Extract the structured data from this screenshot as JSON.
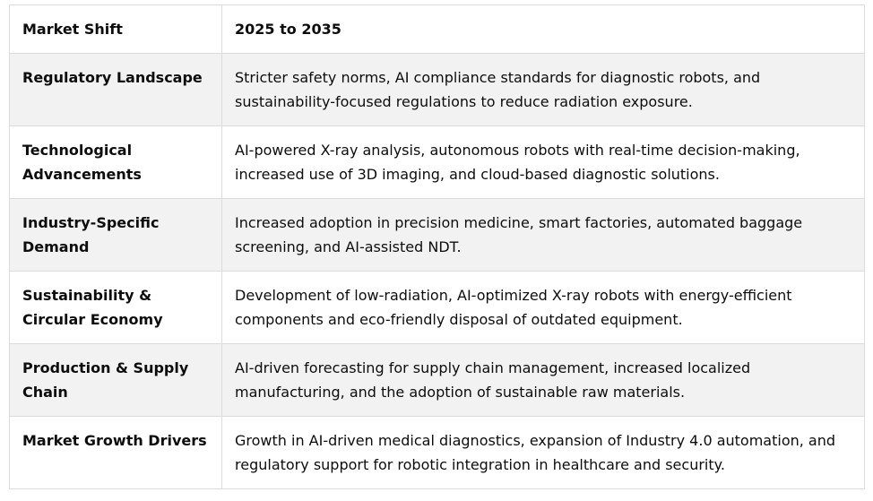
{
  "table": {
    "headers": [
      "Market Shift",
      "2025 to 2035"
    ],
    "rows": [
      {
        "label": "Regulatory Landscape",
        "value": "Stricter safety norms, AI compliance standards for diagnostic robots, and sustainability-focused regulations to reduce radiation exposure."
      },
      {
        "label": "Technological Advancements",
        "value": "AI-powered X-ray analysis, autonomous robots with real-time decision-making, increased use of 3D imaging, and cloud-based diagnostic solutions."
      },
      {
        "label": "Industry-Specific Demand",
        "value": "Increased adoption in precision medicine, smart factories, automated baggage screening, and AI-assisted NDT."
      },
      {
        "label": "Sustainability & Circular Economy",
        "value": "Development of low-radiation, AI-optimized X-ray robots with energy-efficient components and eco-friendly disposal of outdated equipment."
      },
      {
        "label": "Production & Supply Chain",
        "value": "AI-driven forecasting for supply chain management, increased localized manufacturing, and the adoption of sustainable raw materials."
      },
      {
        "label": "Market Growth Drivers",
        "value": "Growth in AI-driven medical diagnostics, expansion of Industry 4.0 automation, and regulatory support for robotic integration in healthcare and security."
      }
    ]
  },
  "colors": {
    "shaded_row": "#f2f2f2",
    "border": "#dcdcdc",
    "text": "#0d0d0d"
  }
}
